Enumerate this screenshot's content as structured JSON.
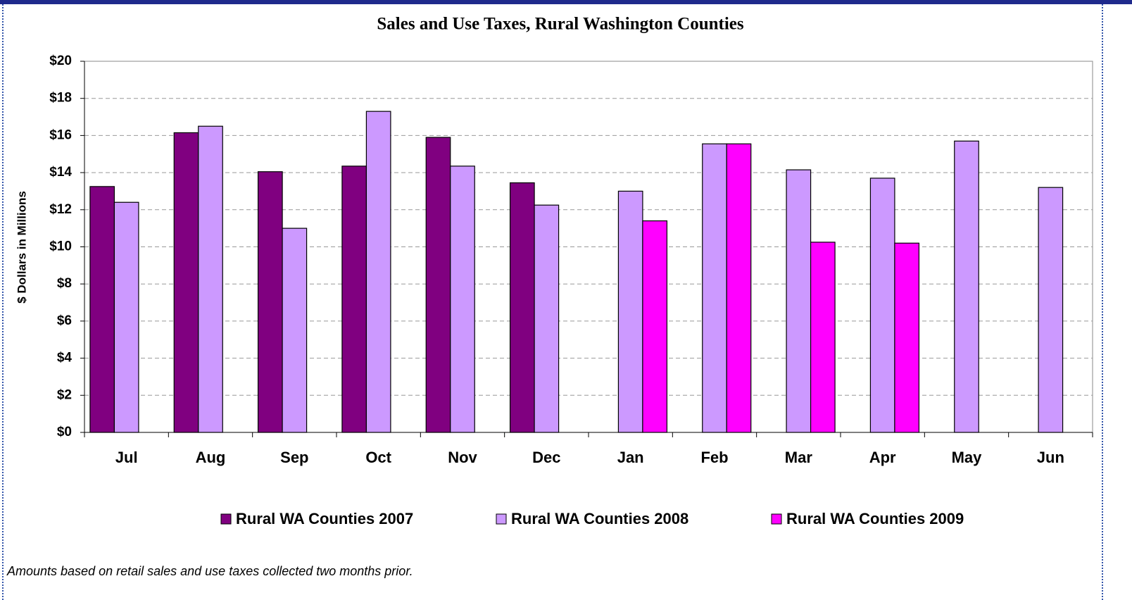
{
  "chart_data": {
    "type": "bar",
    "title": "Sales and Use Taxes, Rural Washington Counties",
    "y_label": "$ Dollars in Millions",
    "footnote": "Amounts based on retail sales and use taxes collected two months prior.",
    "categories": [
      "Jul",
      "Aug",
      "Sep",
      "Oct",
      "Nov",
      "Dec",
      "Jan",
      "Feb",
      "Mar",
      "Apr",
      "May",
      "Jun"
    ],
    "series": [
      {
        "name": "Rural WA Counties 2007",
        "color": "#800080",
        "values": [
          13.25,
          16.15,
          14.05,
          14.35,
          15.9,
          13.45,
          null,
          null,
          null,
          null,
          null,
          null
        ]
      },
      {
        "name": "Rural WA Counties 2008",
        "color": "#cc99ff",
        "values": [
          12.4,
          16.5,
          11.0,
          17.3,
          14.35,
          12.25,
          13.0,
          15.55,
          14.15,
          13.7,
          15.7,
          13.2
        ]
      },
      {
        "name": "Rural WA Counties 2009",
        "color": "#ff00ff",
        "values": [
          null,
          null,
          null,
          null,
          null,
          null,
          11.4,
          15.55,
          10.25,
          10.2,
          null,
          null
        ]
      }
    ],
    "ylim": [
      0,
      20
    ],
    "yticks": [
      {
        "value": 0,
        "label": "$0"
      },
      {
        "value": 2,
        "label": "$2"
      },
      {
        "value": 4,
        "label": "$4"
      },
      {
        "value": 6,
        "label": "$6"
      },
      {
        "value": 8,
        "label": "$8"
      },
      {
        "value": 10,
        "label": "$10"
      },
      {
        "value": 12,
        "label": "$12"
      },
      {
        "value": 14,
        "label": "$14"
      },
      {
        "value": 16,
        "label": "$16"
      },
      {
        "value": 18,
        "label": "$18"
      },
      {
        "value": 20,
        "label": "$20"
      }
    ],
    "grid": true,
    "legend": "bottom"
  }
}
